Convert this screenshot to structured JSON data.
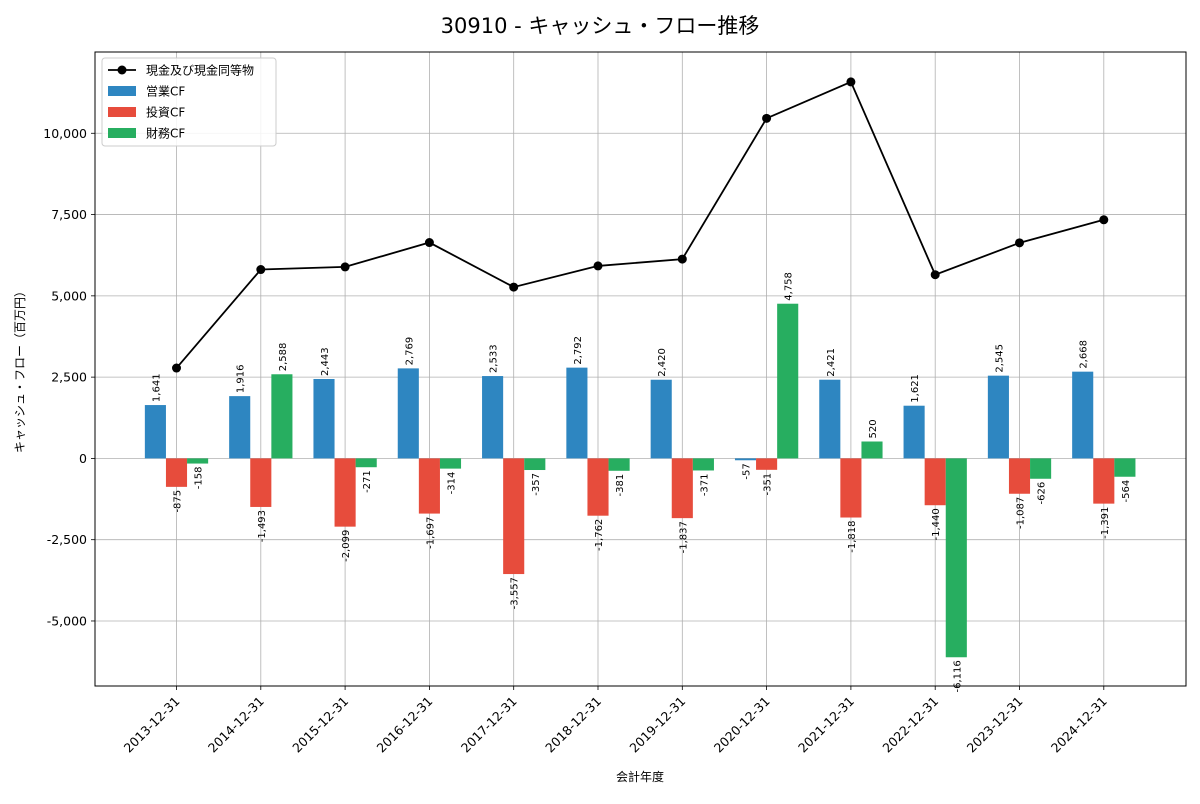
{
  "chart_data": {
    "type": "bar+line",
    "title": "30910 - キャッシュ・フロー推移",
    "xlabel": "会計年度",
    "ylabel": "キャッシュ・フロー（百万円）",
    "ylim": [
      -7000,
      12500
    ],
    "yticks": [
      -5000,
      -2500,
      0,
      2500,
      5000,
      7500,
      10000
    ],
    "ytick_labels": [
      "-5,000",
      "-2,500",
      "0",
      "2,500",
      "5,000",
      "7,500",
      "10,000"
    ],
    "grid": true,
    "legend_position": "top-left",
    "categories": [
      "2013-12-31",
      "2014-12-31",
      "2015-12-31",
      "2016-12-31",
      "2017-12-31",
      "2018-12-31",
      "2019-12-31",
      "2020-12-31",
      "2021-12-31",
      "2022-12-31",
      "2023-12-31",
      "2024-12-31"
    ],
    "line": {
      "name": "現金及び現金同等物",
      "color": "#000000",
      "values": [
        2780,
        5810,
        5890,
        6640,
        5270,
        5920,
        6130,
        10460,
        11580,
        5650,
        6630,
        7340
      ]
    },
    "series": [
      {
        "name": "営業CF",
        "color": "#2e86c1",
        "values": [
          1641,
          1916,
          2443,
          2769,
          2533,
          2792,
          2420,
          -57,
          2421,
          1621,
          2545,
          2668
        ],
        "labels": [
          "1,641",
          "1,916",
          "2,443",
          "2,769",
          "2,533",
          "2,792",
          "2,420",
          "-57",
          "2,421",
          "1,621",
          "2,545",
          "2,668"
        ]
      },
      {
        "name": "投資CF",
        "color": "#e74c3c",
        "values": [
          -875,
          -1493,
          -2099,
          -1697,
          -3557,
          -1762,
          -1837,
          -351,
          -1818,
          -1440,
          -1087,
          -1391
        ],
        "labels": [
          "-875",
          "-1,493",
          "-2,099",
          "-1,697",
          "-3,557",
          "-1,762",
          "-1,837",
          "-351",
          "-1,818",
          "-1,440",
          "-1,087",
          "-1,391"
        ]
      },
      {
        "name": "財務CF",
        "color": "#27ae60",
        "values": [
          -158,
          2588,
          -271,
          -314,
          -357,
          -381,
          -371,
          4758,
          520,
          -6116,
          -626,
          -564
        ],
        "labels": [
          "-158",
          "2,588",
          "-271",
          "-314",
          "-357",
          "-381",
          "-371",
          "4,758",
          "520",
          "-6,116",
          "-626",
          "-564"
        ]
      }
    ]
  }
}
